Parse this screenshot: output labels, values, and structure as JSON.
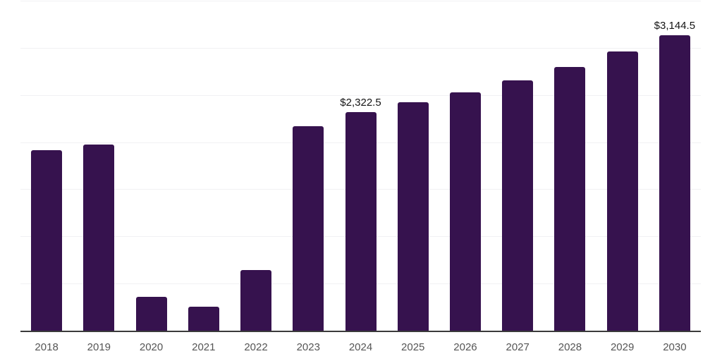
{
  "colors": {
    "background": "#ffffff",
    "bar": "#36124e",
    "axis_line": "#3b3b3b",
    "gridline": "#f1f1f3",
    "tick_label": "#555555",
    "value_label": "#141414"
  },
  "chart_data": {
    "type": "bar",
    "title": "",
    "xlabel": "",
    "ylabel": "",
    "categories": [
      "2018",
      "2019",
      "2020",
      "2021",
      "2022",
      "2023",
      "2024",
      "2025",
      "2026",
      "2027",
      "2028",
      "2029",
      "2030"
    ],
    "values": [
      1920,
      1980,
      365,
      260,
      650,
      2175,
      2322.5,
      2430,
      2535,
      2660,
      2805,
      2970,
      3144.5
    ],
    "value_labels": [
      {
        "category": "2024",
        "text": "$2,322.5"
      },
      {
        "category": "2030",
        "text": "$3,144.5"
      }
    ],
    "ylim": [
      0,
      3500
    ],
    "grid_step": 500,
    "grid": "horizontal-only",
    "y_tick_labels_visible": false,
    "legend": "none"
  }
}
